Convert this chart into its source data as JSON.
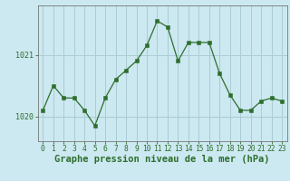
{
  "x": [
    0,
    1,
    2,
    3,
    4,
    5,
    6,
    7,
    8,
    9,
    10,
    11,
    12,
    13,
    14,
    15,
    16,
    17,
    18,
    19,
    20,
    21,
    22,
    23
  ],
  "y": [
    1020.1,
    1020.5,
    1020.3,
    1020.3,
    1020.1,
    1019.85,
    1020.3,
    1020.6,
    1020.75,
    1020.9,
    1021.15,
    1021.55,
    1021.45,
    1020.9,
    1021.2,
    1021.2,
    1021.2,
    1020.7,
    1020.35,
    1020.1,
    1020.1,
    1020.25,
    1020.3,
    1020.25
  ],
  "ylim": [
    1019.6,
    1021.8
  ],
  "yticks": [
    1020,
    1021
  ],
  "xlabel": "Graphe pression niveau de la mer (hPa)",
  "bg_color": "#cce8f0",
  "grid_color": "#aaccd4",
  "line_color": "#2d6e2d",
  "marker_color": "#2d6e2d",
  "tick_label_color": "#2d6e2d",
  "axis_color": "#777777",
  "xlabel_color": "#2d6e2d",
  "xlabel_fontsize": 7.5,
  "tick_fontsize": 6.0
}
